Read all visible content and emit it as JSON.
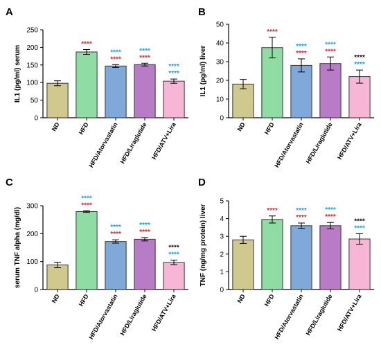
{
  "colors": {
    "ND": "#cfc98d",
    "HFD": "#8fdca4",
    "HFD/Atorvastatin": "#7fa9d8",
    "HFD/Liraglutide": "#b77cc5",
    "HFD/ATV+Lira": "#f8b6d6",
    "star_red": "#e0232b",
    "star_blue": "#1a9fe0",
    "star_black": "#111111"
  },
  "chart_data": [
    {
      "panel": "A",
      "type": "bar",
      "ylabel": "IL1 (pg/ml) serum",
      "categories": [
        "ND",
        "HFD",
        "HFD/Atorvastatin",
        "HFD/Liraglutide",
        "HFD/ATV+Lira"
      ],
      "values": [
        98,
        187,
        147,
        151,
        104
      ],
      "errors": [
        7,
        7,
        4,
        4,
        6
      ],
      "ylim": [
        0,
        250
      ],
      "yticks": [
        0,
        50,
        100,
        150,
        200,
        250
      ],
      "ytick_labels": [
        "0",
        "50",
        "100",
        "150",
        "200",
        "250"
      ],
      "significance": [
        [],
        [
          {
            "text": "****",
            "color": "red"
          }
        ],
        [
          {
            "text": "****",
            "color": "blue"
          },
          {
            "text": "****",
            "color": "red"
          }
        ],
        [
          {
            "text": "****",
            "color": "blue"
          },
          {
            "text": "****",
            "color": "red"
          }
        ],
        [
          {
            "text": "****",
            "color": "blue"
          },
          {
            "text": "****",
            "color": "blue"
          }
        ]
      ]
    },
    {
      "panel": "B",
      "type": "bar",
      "ylabel": "IL1 (pg/ml) liver",
      "categories": [
        "ND",
        "HFD",
        "HFD/Atorvastatin",
        "HFD/Liraglutide",
        "HFD/ATV+Lira"
      ],
      "values": [
        18,
        37.5,
        28,
        29,
        22
      ],
      "errors": [
        2.5,
        5.5,
        3.5,
        3.5,
        3.5
      ],
      "ylim": [
        0,
        50
      ],
      "yticks": [
        0,
        10,
        20,
        30,
        40,
        50
      ],
      "ytick_labels": [
        "0",
        "10",
        "20",
        "30",
        "40",
        "50"
      ],
      "significance": [
        [],
        [
          {
            "text": "****",
            "color": "red"
          }
        ],
        [
          {
            "text": "****",
            "color": "blue"
          },
          {
            "text": "****",
            "color": "red"
          }
        ],
        [
          {
            "text": "****",
            "color": "blue"
          },
          {
            "text": "****",
            "color": "red"
          }
        ],
        [
          {
            "text": "****",
            "color": "black"
          },
          {
            "text": "****",
            "color": "blue"
          }
        ]
      ]
    },
    {
      "panel": "C",
      "type": "bar",
      "ylabel": "serum TNF alpha (mg/dl)",
      "categories": [
        "ND",
        "HFD",
        "HFD/Atorvastatin",
        "HFD/Liraglutide",
        "HFD/ATV+Lira"
      ],
      "values": [
        88,
        279,
        172,
        180,
        97
      ],
      "errors": [
        10,
        3,
        6,
        6,
        8
      ],
      "ylim": [
        0,
        300
      ],
      "yticks": [
        0,
        100,
        200,
        300
      ],
      "ytick_labels": [
        "0",
        "100",
        "200",
        "300"
      ],
      "significance": [
        [],
        [
          {
            "text": "****",
            "color": "blue"
          },
          {
            "text": "****",
            "color": "red"
          }
        ],
        [
          {
            "text": "****",
            "color": "blue"
          },
          {
            "text": "****",
            "color": "red"
          }
        ],
        [
          {
            "text": "****",
            "color": "blue"
          },
          {
            "text": "****",
            "color": "red"
          }
        ],
        [
          {
            "text": "****",
            "color": "black"
          },
          {
            "text": "****",
            "color": "blue"
          }
        ]
      ]
    },
    {
      "panel": "D",
      "type": "bar",
      "ylabel": "TNF (ng/mg protein) liver",
      "categories": [
        "ND",
        "HFD",
        "HFD/Atorvastatin",
        "HFD/Liraglutide",
        "HFD/ATV+Lira"
      ],
      "values": [
        2.8,
        3.95,
        3.6,
        3.6,
        2.85
      ],
      "errors": [
        0.2,
        0.2,
        0.15,
        0.18,
        0.3
      ],
      "ylim": [
        0,
        5
      ],
      "yticks": [
        0,
        1,
        2,
        3,
        4,
        5
      ],
      "ytick_labels": [
        "0",
        "1",
        "2",
        "3",
        "4",
        "5"
      ],
      "significance": [
        [],
        [
          {
            "text": "****",
            "color": "red"
          }
        ],
        [
          {
            "text": "****",
            "color": "blue"
          },
          {
            "text": "****",
            "color": "red"
          }
        ],
        [
          {
            "text": "****",
            "color": "blue"
          },
          {
            "text": "****",
            "color": "red"
          }
        ],
        [
          {
            "text": "****",
            "color": "black"
          },
          {
            "text": "****",
            "color": "blue"
          }
        ]
      ]
    }
  ]
}
